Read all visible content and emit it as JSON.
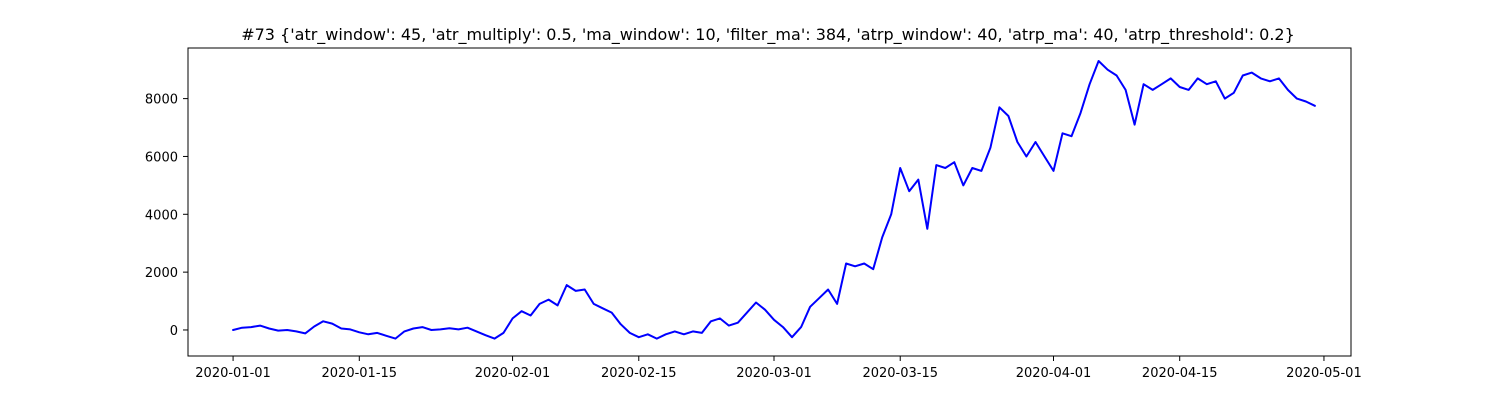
{
  "chart_data": {
    "type": "line",
    "title": "#73 {'atr_window': 45, 'atr_multiply': 0.5, 'ma_window': 10, 'filter_ma': 384, 'atrp_window': 40, 'atrp_ma': 40, 'atrp_threshold': 0.2}",
    "xlabel": "",
    "ylabel": "",
    "x_axis_type": "date",
    "xlim": [
      "2019-12-27",
      "2020-05-04"
    ],
    "ylim": [
      -900,
      9750
    ],
    "grid": false,
    "legend": "none",
    "x_ticks": [
      {
        "value": "2020-01-01",
        "label": "2020-01-01"
      },
      {
        "value": "2020-01-15",
        "label": "2020-01-15"
      },
      {
        "value": "2020-02-01",
        "label": "2020-02-01"
      },
      {
        "value": "2020-02-15",
        "label": "2020-02-15"
      },
      {
        "value": "2020-03-01",
        "label": "2020-03-01"
      },
      {
        "value": "2020-03-15",
        "label": "2020-03-15"
      },
      {
        "value": "2020-04-01",
        "label": "2020-04-01"
      },
      {
        "value": "2020-04-15",
        "label": "2020-04-15"
      },
      {
        "value": "2020-05-01",
        "label": "2020-05-01"
      }
    ],
    "y_ticks": [
      {
        "value": 0,
        "label": "0"
      },
      {
        "value": 2000,
        "label": "2000"
      },
      {
        "value": 4000,
        "label": "4000"
      },
      {
        "value": 6000,
        "label": "6000"
      },
      {
        "value": 8000,
        "label": "8000"
      }
    ],
    "series": [
      {
        "color": "#0000ff",
        "points": [
          [
            "2020-01-01",
            0
          ],
          [
            "2020-01-02",
            80
          ],
          [
            "2020-01-03",
            100
          ],
          [
            "2020-01-04",
            150
          ],
          [
            "2020-01-05",
            50
          ],
          [
            "2020-01-06",
            -20
          ],
          [
            "2020-01-07",
            0
          ],
          [
            "2020-01-08",
            -50
          ],
          [
            "2020-01-09",
            -120
          ],
          [
            "2020-01-10",
            120
          ],
          [
            "2020-01-11",
            300
          ],
          [
            "2020-01-12",
            220
          ],
          [
            "2020-01-13",
            50
          ],
          [
            "2020-01-14",
            20
          ],
          [
            "2020-01-15",
            -80
          ],
          [
            "2020-01-16",
            -150
          ],
          [
            "2020-01-17",
            -100
          ],
          [
            "2020-01-18",
            -200
          ],
          [
            "2020-01-19",
            -300
          ],
          [
            "2020-01-20",
            -50
          ],
          [
            "2020-01-21",
            50
          ],
          [
            "2020-01-22",
            100
          ],
          [
            "2020-01-23",
            0
          ],
          [
            "2020-01-24",
            20
          ],
          [
            "2020-01-25",
            60
          ],
          [
            "2020-01-26",
            20
          ],
          [
            "2020-01-27",
            80
          ],
          [
            "2020-01-28",
            -50
          ],
          [
            "2020-01-29",
            -180
          ],
          [
            "2020-01-30",
            -300
          ],
          [
            "2020-01-31",
            -100
          ],
          [
            "2020-02-01",
            400
          ],
          [
            "2020-02-02",
            650
          ],
          [
            "2020-02-03",
            500
          ],
          [
            "2020-02-04",
            900
          ],
          [
            "2020-02-05",
            1050
          ],
          [
            "2020-02-06",
            850
          ],
          [
            "2020-02-07",
            1550
          ],
          [
            "2020-02-08",
            1350
          ],
          [
            "2020-02-09",
            1400
          ],
          [
            "2020-02-10",
            900
          ],
          [
            "2020-02-11",
            750
          ],
          [
            "2020-02-12",
            600
          ],
          [
            "2020-02-13",
            200
          ],
          [
            "2020-02-14",
            -100
          ],
          [
            "2020-02-15",
            -250
          ],
          [
            "2020-02-16",
            -150
          ],
          [
            "2020-02-17",
            -300
          ],
          [
            "2020-02-18",
            -150
          ],
          [
            "2020-02-19",
            -50
          ],
          [
            "2020-02-20",
            -150
          ],
          [
            "2020-02-21",
            -50
          ],
          [
            "2020-02-22",
            -100
          ],
          [
            "2020-02-23",
            300
          ],
          [
            "2020-02-24",
            400
          ],
          [
            "2020-02-25",
            150
          ],
          [
            "2020-02-26",
            250
          ],
          [
            "2020-02-27",
            600
          ],
          [
            "2020-02-28",
            950
          ],
          [
            "2020-02-29",
            700
          ],
          [
            "2020-03-01",
            350
          ],
          [
            "2020-03-02",
            100
          ],
          [
            "2020-03-03",
            -250
          ],
          [
            "2020-03-04",
            100
          ],
          [
            "2020-03-05",
            800
          ],
          [
            "2020-03-06",
            1100
          ],
          [
            "2020-03-07",
            1400
          ],
          [
            "2020-03-08",
            900
          ],
          [
            "2020-03-09",
            2300
          ],
          [
            "2020-03-10",
            2200
          ],
          [
            "2020-03-11",
            2300
          ],
          [
            "2020-03-12",
            2100
          ],
          [
            "2020-03-13",
            3200
          ],
          [
            "2020-03-14",
            4000
          ],
          [
            "2020-03-15",
            5600
          ],
          [
            "2020-03-16",
            4800
          ],
          [
            "2020-03-17",
            5200
          ],
          [
            "2020-03-18",
            3500
          ],
          [
            "2020-03-19",
            5700
          ],
          [
            "2020-03-20",
            5600
          ],
          [
            "2020-03-21",
            5800
          ],
          [
            "2020-03-22",
            5000
          ],
          [
            "2020-03-23",
            5600
          ],
          [
            "2020-03-24",
            5500
          ],
          [
            "2020-03-25",
            6300
          ],
          [
            "2020-03-26",
            7700
          ],
          [
            "2020-03-27",
            7400
          ],
          [
            "2020-03-28",
            6500
          ],
          [
            "2020-03-29",
            6000
          ],
          [
            "2020-03-30",
            6500
          ],
          [
            "2020-03-31",
            6000
          ],
          [
            "2020-04-01",
            5500
          ],
          [
            "2020-04-02",
            6800
          ],
          [
            "2020-04-03",
            6700
          ],
          [
            "2020-04-04",
            7500
          ],
          [
            "2020-04-05",
            8500
          ],
          [
            "2020-04-06",
            9300
          ],
          [
            "2020-04-07",
            9000
          ],
          [
            "2020-04-08",
            8800
          ],
          [
            "2020-04-09",
            8300
          ],
          [
            "2020-04-10",
            7100
          ],
          [
            "2020-04-11",
            8500
          ],
          [
            "2020-04-12",
            8300
          ],
          [
            "2020-04-13",
            8500
          ],
          [
            "2020-04-14",
            8700
          ],
          [
            "2020-04-15",
            8400
          ],
          [
            "2020-04-16",
            8300
          ],
          [
            "2020-04-17",
            8700
          ],
          [
            "2020-04-18",
            8500
          ],
          [
            "2020-04-19",
            8600
          ],
          [
            "2020-04-20",
            8000
          ],
          [
            "2020-04-21",
            8200
          ],
          [
            "2020-04-22",
            8800
          ],
          [
            "2020-04-23",
            8900
          ],
          [
            "2020-04-24",
            8700
          ],
          [
            "2020-04-25",
            8600
          ],
          [
            "2020-04-26",
            8700
          ],
          [
            "2020-04-27",
            8300
          ],
          [
            "2020-04-28",
            8000
          ],
          [
            "2020-04-29",
            7900
          ],
          [
            "2020-04-30",
            7750
          ]
        ]
      }
    ]
  }
}
